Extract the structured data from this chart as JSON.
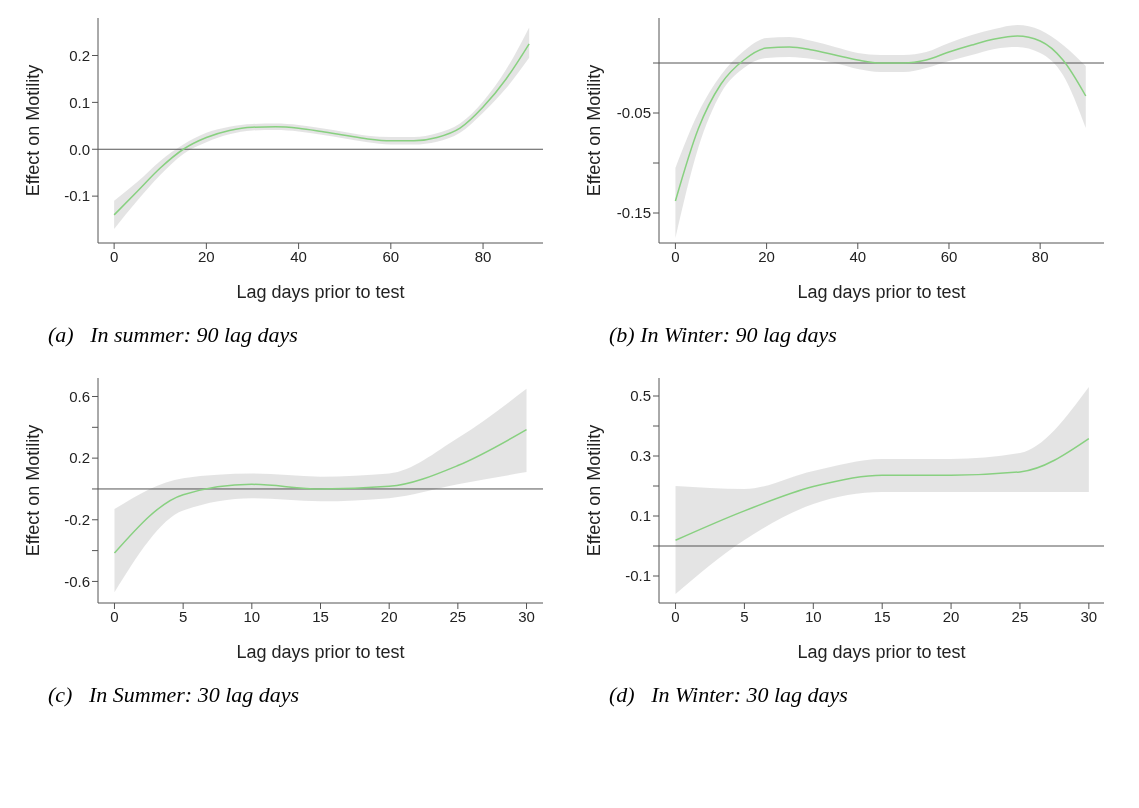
{
  "chart_data": [
    {
      "type": "line",
      "xlabel": "Lag days prior to test",
      "ylabel": "Effect on Motility",
      "annotations": [
        "(a)   In summer: 90 lag days"
      ],
      "xlim": [
        -3.5,
        93
      ],
      "xticks": [
        0,
        20,
        40,
        60,
        80
      ],
      "ylim": [
        -0.2,
        0.28
      ],
      "yticks": [
        -0.1,
        {
          "value": 0,
          "label": "0.0"
        },
        0.1,
        0.2
      ],
      "grid": false,
      "legend": false,
      "ref_lines": [
        {
          "axis": "y",
          "value": 0,
          "color": "#555555"
        }
      ],
      "x": [
        0,
        5,
        10,
        15,
        20,
        25,
        30,
        35,
        40,
        45,
        50,
        55,
        60,
        65,
        70,
        75,
        80,
        85,
        90
      ],
      "series": [
        {
          "color": "#88d080",
          "values": [
            -0.14,
            -0.09,
            -0.04,
            0.0,
            0.025,
            0.04,
            0.047,
            0.048,
            0.045,
            0.038,
            0.03,
            0.022,
            0.018,
            0.018,
            0.025,
            0.045,
            0.09,
            0.15,
            0.225
          ],
          "lower": [
            -0.17,
            -0.11,
            -0.055,
            -0.01,
            0.015,
            0.032,
            0.04,
            0.041,
            0.038,
            0.031,
            0.023,
            0.015,
            0.01,
            0.01,
            0.016,
            0.035,
            0.078,
            0.13,
            0.195
          ],
          "upper": [
            -0.11,
            -0.07,
            -0.025,
            0.01,
            0.035,
            0.048,
            0.054,
            0.055,
            0.052,
            0.045,
            0.037,
            0.029,
            0.026,
            0.026,
            0.034,
            0.055,
            0.102,
            0.17,
            0.26
          ]
        }
      ]
    },
    {
      "type": "line",
      "xlabel": "Lag days prior to test",
      "ylabel": "Effect on Motility",
      "annotations": [
        "(b) In Winter: 90 lag days"
      ],
      "xlim": [
        -3.6,
        94
      ],
      "xticks": [
        0,
        20,
        40,
        60,
        80
      ],
      "ylim": [
        -0.18,
        0.045
      ],
      "yticks": [
        {
          "value": -0.15,
          "label": "-0.15"
        },
        {
          "value": -0.1,
          "label": null
        },
        {
          "value": -0.05,
          "label": "-0.05"
        },
        {
          "value": 0,
          "label": null
        }
      ],
      "grid": false,
      "legend": false,
      "ref_lines": [
        {
          "axis": "y",
          "value": 0,
          "color": "#555555"
        }
      ],
      "x": [
        0,
        5,
        10,
        15,
        20,
        25,
        30,
        35,
        40,
        45,
        50,
        55,
        60,
        65,
        70,
        75,
        80,
        85,
        90
      ],
      "series": [
        {
          "color": "#88d080",
          "values": [
            -0.138,
            -0.066,
            -0.021,
            0.003,
            0.015,
            0.016,
            0.013,
            0.008,
            0.003,
            0,
            0,
            0.003,
            0.011,
            0.018,
            0.024,
            0.027,
            0.022,
            0.003,
            -0.033
          ],
          "lower": [
            -0.175,
            -0.085,
            -0.03,
            -0.005,
            0.005,
            0.006,
            0.004,
            0,
            -0.006,
            -0.009,
            -0.009,
            -0.005,
            0.002,
            0.008,
            0.014,
            0.016,
            0.01,
            -0.012,
            -0.065
          ],
          "upper": [
            -0.105,
            -0.05,
            -0.012,
            0.012,
            0.025,
            0.026,
            0.022,
            0.016,
            0.01,
            0.008,
            0.008,
            0.011,
            0.02,
            0.028,
            0.034,
            0.038,
            0.033,
            0.018,
            -0.003
          ]
        }
      ]
    },
    {
      "type": "line",
      "xlabel": "Lag days prior to test",
      "ylabel": "Effect on Motility",
      "annotations": [
        "(c)   In Summer: 30 lag days"
      ],
      "xlim": [
        -1.2,
        31.2
      ],
      "xticks": [
        0,
        5,
        10,
        15,
        20,
        25,
        30
      ],
      "ylim": [
        -0.74,
        0.72
      ],
      "yticks": [
        {
          "value": -0.6,
          "label": "-0.6"
        },
        {
          "value": -0.4,
          "label": null
        },
        {
          "value": -0.2,
          "label": "-0.2"
        },
        {
          "value": 0,
          "label": null
        },
        {
          "value": 0.2,
          "label": "0.2"
        },
        {
          "value": 0.4,
          "label": null
        },
        {
          "value": 0.6,
          "label": "0.6"
        }
      ],
      "grid": false,
      "legend": false,
      "ref_lines": [
        {
          "axis": "y",
          "value": 0,
          "color": "#555555"
        }
      ],
      "x": [
        0,
        5,
        10,
        15,
        20,
        25,
        30
      ],
      "series": [
        {
          "color": "#88d080",
          "values": [
            -0.416,
            -0.037,
            0.03,
            0,
            0.017,
            0.152,
            0.385
          ],
          "lower": [
            -0.67,
            -0.14,
            -0.06,
            -0.08,
            -0.06,
            0.03,
            0.11
          ],
          "upper": [
            -0.13,
            0.07,
            0.1,
            0.08,
            0.1,
            0.33,
            0.65
          ]
        }
      ]
    },
    {
      "type": "line",
      "xlabel": "Lag days prior to test",
      "ylabel": "Effect on Motility",
      "annotations": [
        "(d)   In Winter: 30 lag days"
      ],
      "xlim": [
        -1.2,
        31.1
      ],
      "xticks": [
        0,
        5,
        10,
        15,
        20,
        25,
        30
      ],
      "ylim": [
        -0.19,
        0.56
      ],
      "yticks": [
        {
          "value": -0.1,
          "label": "-0.1"
        },
        {
          "value": 0,
          "label": null
        },
        {
          "value": 0.1,
          "label": "0.1"
        },
        {
          "value": 0.2,
          "label": null
        },
        {
          "value": 0.3,
          "label": "0.3"
        },
        {
          "value": 0.4,
          "label": null
        },
        {
          "value": 0.5,
          "label": "0.5"
        }
      ],
      "grid": false,
      "legend": false,
      "ref_lines": [
        {
          "axis": "y",
          "value": 0,
          "color": "#555555"
        }
      ],
      "x": [
        0,
        5,
        10,
        15,
        20,
        25,
        30
      ],
      "series": [
        {
          "color": "#88d080",
          "values": [
            0.019,
            0.117,
            0.198,
            0.236,
            0.236,
            0.247,
            0.358
          ],
          "lower": [
            -0.16,
            0.02,
            0.14,
            0.18,
            0.18,
            0.18,
            0.18
          ],
          "upper": [
            0.2,
            0.19,
            0.25,
            0.29,
            0.29,
            0.31,
            0.53
          ]
        }
      ]
    }
  ]
}
